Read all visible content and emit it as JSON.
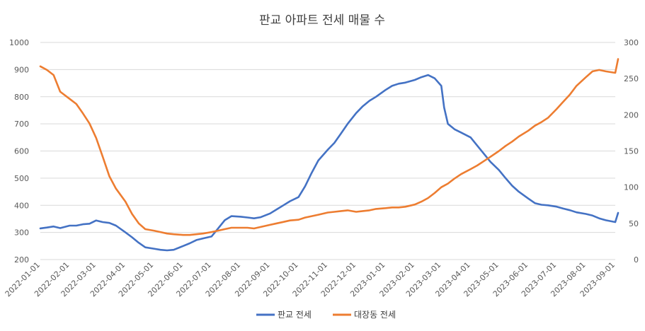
{
  "chart_data": {
    "type": "line",
    "title": "판교 아파트 전세 매물 수",
    "xlabel": "",
    "ylabel": "",
    "ylim": [
      200,
      1000
    ],
    "y2lim": [
      0,
      300
    ],
    "y_ticks": [
      "200",
      "300",
      "400",
      "500",
      "600",
      "700",
      "800",
      "900",
      "1000"
    ],
    "y2_ticks": [
      "0",
      "50",
      "100",
      "150",
      "200",
      "250",
      "300"
    ],
    "x_ticks": [
      "2022-01-01",
      "2022-02-01",
      "2022-03-01",
      "2022-04-01",
      "2022-05-01",
      "2022-06-01",
      "2022-07-01",
      "2022-08-01",
      "2022-09-01",
      "2022-10-01",
      "2022-11-01",
      "2022-12-01",
      "2023-01-01",
      "2023-02-01",
      "2023-03-01",
      "2023-04-01",
      "2023-05-01",
      "2023-06-01",
      "2023-07-01",
      "2023-08-01",
      "2023-09-01"
    ],
    "grid": true,
    "legend_position": "bottom",
    "series": [
      {
        "name": "판교 전세",
        "axis": "left",
        "color": "#4472C4",
        "x": [
          "2022-01-01",
          "2022-01-08",
          "2022-01-15",
          "2022-01-22",
          "2022-02-01",
          "2022-02-08",
          "2022-02-15",
          "2022-02-22",
          "2022-03-01",
          "2022-03-08",
          "2022-03-15",
          "2022-03-22",
          "2022-04-01",
          "2022-04-08",
          "2022-04-15",
          "2022-04-22",
          "2022-05-01",
          "2022-05-08",
          "2022-05-15",
          "2022-05-22",
          "2022-06-01",
          "2022-06-08",
          "2022-06-15",
          "2022-06-22",
          "2022-07-01",
          "2022-07-08",
          "2022-07-15",
          "2022-07-22",
          "2022-08-01",
          "2022-08-08",
          "2022-08-15",
          "2022-08-22",
          "2022-09-01",
          "2022-09-08",
          "2022-09-15",
          "2022-09-22",
          "2022-10-01",
          "2022-10-08",
          "2022-10-15",
          "2022-10-22",
          "2022-11-01",
          "2022-11-08",
          "2022-11-15",
          "2022-11-22",
          "2022-12-01",
          "2022-12-08",
          "2022-12-15",
          "2022-12-22",
          "2023-01-01",
          "2023-01-08",
          "2023-01-15",
          "2023-01-22",
          "2023-02-01",
          "2023-02-08",
          "2023-02-15",
          "2023-02-22",
          "2023-03-01",
          "2023-03-04",
          "2023-03-08",
          "2023-03-15",
          "2023-03-22",
          "2023-04-01",
          "2023-04-08",
          "2023-04-15",
          "2023-04-22",
          "2023-05-01",
          "2023-05-08",
          "2023-05-15",
          "2023-05-22",
          "2023-06-01",
          "2023-06-08",
          "2023-06-15",
          "2023-06-22",
          "2023-07-01",
          "2023-07-08",
          "2023-07-15",
          "2023-07-22",
          "2023-08-01",
          "2023-08-08",
          "2023-08-15",
          "2023-08-22",
          "2023-09-01",
          "2023-09-04"
        ],
        "values": [
          315,
          318,
          322,
          316,
          325,
          325,
          330,
          332,
          344,
          338,
          335,
          325,
          300,
          282,
          262,
          245,
          240,
          236,
          234,
          236,
          250,
          260,
          272,
          278,
          285,
          315,
          345,
          360,
          358,
          355,
          352,
          356,
          370,
          385,
          400,
          415,
          430,
          470,
          520,
          565,
          605,
          630,
          665,
          700,
          740,
          765,
          785,
          800,
          825,
          840,
          848,
          852,
          862,
          872,
          880,
          868,
          840,
          760,
          700,
          680,
          668,
          650,
          620,
          590,
          560,
          530,
          500,
          472,
          450,
          425,
          408,
          402,
          400,
          395,
          388,
          382,
          374,
          368,
          362,
          352,
          345,
          338,
          372
        ]
      },
      {
        "name": "대장동 전세",
        "axis": "right",
        "color": "#ED7D31",
        "x": [
          "2022-01-01",
          "2022-01-08",
          "2022-01-15",
          "2022-01-22",
          "2022-02-01",
          "2022-02-08",
          "2022-02-15",
          "2022-02-22",
          "2022-03-01",
          "2022-03-08",
          "2022-03-15",
          "2022-03-22",
          "2022-04-01",
          "2022-04-08",
          "2022-04-15",
          "2022-04-22",
          "2022-05-01",
          "2022-05-08",
          "2022-05-15",
          "2022-05-22",
          "2022-06-01",
          "2022-06-08",
          "2022-06-15",
          "2022-06-22",
          "2022-07-01",
          "2022-07-08",
          "2022-07-15",
          "2022-07-22",
          "2022-08-01",
          "2022-08-08",
          "2022-08-15",
          "2022-08-22",
          "2022-09-01",
          "2022-09-08",
          "2022-09-15",
          "2022-09-22",
          "2022-10-01",
          "2022-10-08",
          "2022-10-15",
          "2022-10-22",
          "2022-11-01",
          "2022-11-08",
          "2022-11-15",
          "2022-11-22",
          "2022-12-01",
          "2022-12-08",
          "2022-12-15",
          "2022-12-22",
          "2023-01-01",
          "2023-01-08",
          "2023-01-15",
          "2023-01-22",
          "2023-02-01",
          "2023-02-08",
          "2023-02-15",
          "2023-02-22",
          "2023-03-01",
          "2023-03-08",
          "2023-03-15",
          "2023-03-22",
          "2023-04-01",
          "2023-04-08",
          "2023-04-15",
          "2023-04-22",
          "2023-05-01",
          "2023-05-08",
          "2023-05-15",
          "2023-05-22",
          "2023-06-01",
          "2023-06-08",
          "2023-06-15",
          "2023-06-22",
          "2023-07-01",
          "2023-07-08",
          "2023-07-15",
          "2023-07-22",
          "2023-08-01",
          "2023-08-08",
          "2023-08-15",
          "2023-08-22",
          "2023-09-01",
          "2023-09-04"
        ],
        "values": [
          267,
          262,
          255,
          232,
          222,
          215,
          202,
          188,
          168,
          142,
          115,
          98,
          80,
          63,
          50,
          42,
          40,
          38,
          36,
          35,
          34,
          34,
          35,
          36,
          38,
          40,
          42,
          44,
          44,
          44,
          43,
          45,
          48,
          50,
          52,
          54,
          55,
          58,
          60,
          62,
          65,
          66,
          67,
          68,
          66,
          67,
          68,
          70,
          71,
          72,
          72,
          73,
          76,
          80,
          85,
          92,
          100,
          105,
          112,
          118,
          125,
          130,
          136,
          142,
          150,
          157,
          163,
          170,
          178,
          185,
          190,
          196,
          208,
          218,
          228,
          240,
          252,
          260,
          262,
          260,
          258,
          277
        ]
      }
    ]
  }
}
